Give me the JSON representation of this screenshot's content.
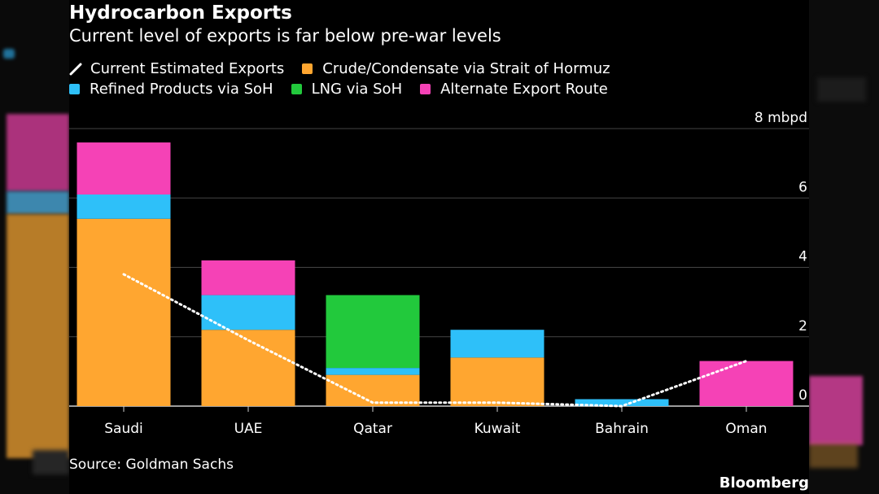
{
  "header": {
    "title": "Hydrocarbon Exports",
    "subtitle": "Current level of exports is far below pre-war levels"
  },
  "footer": {
    "source": "Source: Goldman Sachs",
    "brand": "Bloomberg"
  },
  "legend": [
    {
      "label": "Current Estimated Exports",
      "kind": "line",
      "color": "#ffffff"
    },
    {
      "label": "Crude/Condensate via Strait of Hormuz",
      "kind": "box",
      "color": "#ffa630"
    },
    {
      "label": "Refined Products via SoH",
      "kind": "box",
      "color": "#2ec0f9"
    },
    {
      "label": "LNG via SoH",
      "kind": "box",
      "color": "#22c93c"
    },
    {
      "label": "Alternate Export Route",
      "kind": "box",
      "color": "#f542b6"
    }
  ],
  "chart_data": {
    "type": "bar",
    "stacked": true,
    "title": "Hydrocarbon Exports",
    "subtitle": "Current level of exports is far below pre-war levels",
    "categories": [
      "Saudi",
      "UAE",
      "Qatar",
      "Kuwait",
      "Bahrain",
      "Oman"
    ],
    "y_unit": "mbpd",
    "ylim": [
      0,
      8
    ],
    "y_ticks": [
      0,
      2,
      4,
      6,
      8
    ],
    "y_tick_labels": [
      "0",
      "2",
      "4",
      "6",
      "8 mbpd"
    ],
    "grid": true,
    "series": [
      {
        "name": "Crude/Condensate via Strait of Hormuz",
        "color": "#ffa630",
        "values": [
          5.4,
          2.2,
          0.9,
          1.4,
          0,
          0
        ]
      },
      {
        "name": "Refined Products via SoH",
        "color": "#2ec0f9",
        "values": [
          0.7,
          1.0,
          0.2,
          0.8,
          0.2,
          0
        ]
      },
      {
        "name": "LNG via SoH",
        "color": "#22c93c",
        "values": [
          0,
          0,
          2.1,
          0,
          0,
          0
        ]
      },
      {
        "name": "Alternate Export Route",
        "color": "#f542b6",
        "values": [
          1.5,
          1.0,
          0,
          0,
          0,
          1.3
        ]
      }
    ],
    "line_series": {
      "name": "Current Estimated Exports",
      "color": "#ffffff",
      "style": "dotted",
      "values": [
        3.8,
        1.9,
        0.1,
        0.1,
        0.0,
        1.3
      ]
    }
  }
}
